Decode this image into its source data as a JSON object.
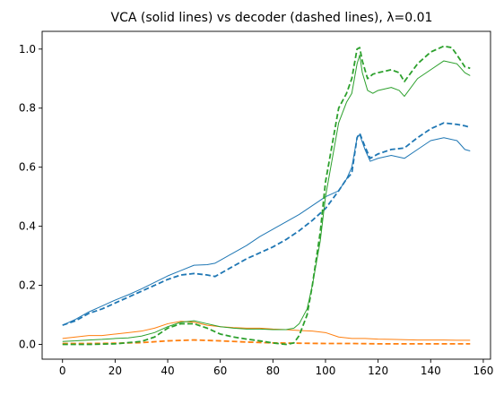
{
  "chart_data": {
    "type": "line",
    "title": "VCA (solid lines) vs decoder (dashed lines), λ=0.01",
    "xlabel": "",
    "ylabel": "",
    "xlim": [
      -7.75,
      162.75
    ],
    "ylim": [
      -0.05,
      1.06
    ],
    "xticks": [
      0,
      20,
      40,
      60,
      80,
      100,
      120,
      140,
      160
    ],
    "yticks": [
      0.0,
      0.2,
      0.4,
      0.6,
      0.8,
      1.0
    ],
    "ytick_labels": [
      "0.0",
      "0.2",
      "0.4",
      "0.6",
      "0.8",
      "1.0"
    ],
    "grid": false,
    "legend": "none",
    "colors": {
      "blue": "#1f77b4",
      "orange": "#ff7f0e",
      "green": "#2ca02c"
    },
    "series": [
      {
        "color": "#1f77b4",
        "style": "solid",
        "points": [
          [
            0,
            0.065
          ],
          [
            5,
            0.085
          ],
          [
            10,
            0.11
          ],
          [
            15,
            0.13
          ],
          [
            20,
            0.15
          ],
          [
            25,
            0.168
          ],
          [
            30,
            0.188
          ],
          [
            35,
            0.21
          ],
          [
            40,
            0.232
          ],
          [
            45,
            0.25
          ],
          [
            50,
            0.268
          ],
          [
            55,
            0.27
          ],
          [
            58,
            0.275
          ],
          [
            60,
            0.285
          ],
          [
            65,
            0.31
          ],
          [
            70,
            0.335
          ],
          [
            75,
            0.365
          ],
          [
            80,
            0.39
          ],
          [
            85,
            0.415
          ],
          [
            90,
            0.44
          ],
          [
            95,
            0.47
          ],
          [
            100,
            0.5
          ],
          [
            105,
            0.52
          ],
          [
            108,
            0.56
          ],
          [
            110,
            0.6
          ],
          [
            112,
            0.7
          ],
          [
            113,
            0.71
          ],
          [
            115,
            0.66
          ],
          [
            117,
            0.62
          ],
          [
            120,
            0.63
          ],
          [
            125,
            0.64
          ],
          [
            130,
            0.63
          ],
          [
            135,
            0.66
          ],
          [
            140,
            0.69
          ],
          [
            145,
            0.7
          ],
          [
            150,
            0.69
          ],
          [
            153,
            0.66
          ],
          [
            155,
            0.655
          ]
        ]
      },
      {
        "color": "#1f77b4",
        "style": "dashed",
        "points": [
          [
            0,
            0.065
          ],
          [
            5,
            0.08
          ],
          [
            10,
            0.105
          ],
          [
            15,
            0.12
          ],
          [
            20,
            0.14
          ],
          [
            25,
            0.16
          ],
          [
            30,
            0.18
          ],
          [
            35,
            0.2
          ],
          [
            40,
            0.22
          ],
          [
            45,
            0.235
          ],
          [
            50,
            0.24
          ],
          [
            55,
            0.235
          ],
          [
            58,
            0.23
          ],
          [
            60,
            0.24
          ],
          [
            65,
            0.265
          ],
          [
            70,
            0.29
          ],
          [
            75,
            0.31
          ],
          [
            80,
            0.33
          ],
          [
            85,
            0.355
          ],
          [
            90,
            0.385
          ],
          [
            95,
            0.42
          ],
          [
            100,
            0.46
          ],
          [
            105,
            0.52
          ],
          [
            108,
            0.56
          ],
          [
            110,
            0.58
          ],
          [
            112,
            0.7
          ],
          [
            113,
            0.715
          ],
          [
            115,
            0.67
          ],
          [
            117,
            0.63
          ],
          [
            120,
            0.645
          ],
          [
            125,
            0.66
          ],
          [
            130,
            0.665
          ],
          [
            135,
            0.7
          ],
          [
            140,
            0.73
          ],
          [
            145,
            0.75
          ],
          [
            150,
            0.745
          ],
          [
            153,
            0.74
          ],
          [
            155,
            0.735
          ]
        ]
      },
      {
        "color": "#ff7f0e",
        "style": "solid",
        "points": [
          [
            0,
            0.02
          ],
          [
            5,
            0.025
          ],
          [
            10,
            0.03
          ],
          [
            15,
            0.03
          ],
          [
            20,
            0.035
          ],
          [
            25,
            0.04
          ],
          [
            30,
            0.045
          ],
          [
            35,
            0.055
          ],
          [
            40,
            0.07
          ],
          [
            45,
            0.078
          ],
          [
            50,
            0.075
          ],
          [
            55,
            0.065
          ],
          [
            60,
            0.06
          ],
          [
            65,
            0.057
          ],
          [
            70,
            0.055
          ],
          [
            75,
            0.055
          ],
          [
            80,
            0.052
          ],
          [
            85,
            0.05
          ],
          [
            90,
            0.047
          ],
          [
            95,
            0.045
          ],
          [
            100,
            0.04
          ],
          [
            105,
            0.025
          ],
          [
            110,
            0.02
          ],
          [
            115,
            0.02
          ],
          [
            120,
            0.018
          ],
          [
            125,
            0.017
          ],
          [
            130,
            0.016
          ],
          [
            135,
            0.015
          ],
          [
            140,
            0.015
          ],
          [
            145,
            0.015
          ],
          [
            150,
            0.014
          ],
          [
            155,
            0.014
          ]
        ]
      },
      {
        "color": "#ff7f0e",
        "style": "dashed",
        "points": [
          [
            0,
            0.003
          ],
          [
            10,
            0.003
          ],
          [
            20,
            0.004
          ],
          [
            30,
            0.006
          ],
          [
            40,
            0.012
          ],
          [
            50,
            0.015
          ],
          [
            60,
            0.012
          ],
          [
            70,
            0.008
          ],
          [
            80,
            0.005
          ],
          [
            90,
            0.004
          ],
          [
            100,
            0.003
          ],
          [
            110,
            0.003
          ],
          [
            120,
            0.002
          ],
          [
            130,
            0.002
          ],
          [
            140,
            0.002
          ],
          [
            150,
            0.002
          ],
          [
            155,
            0.002
          ]
        ]
      },
      {
        "color": "#2ca02c",
        "style": "solid",
        "points": [
          [
            0,
            0.01
          ],
          [
            5,
            0.012
          ],
          [
            10,
            0.015
          ],
          [
            15,
            0.017
          ],
          [
            20,
            0.02
          ],
          [
            25,
            0.022
          ],
          [
            30,
            0.028
          ],
          [
            35,
            0.04
          ],
          [
            40,
            0.06
          ],
          [
            45,
            0.075
          ],
          [
            50,
            0.08
          ],
          [
            55,
            0.07
          ],
          [
            60,
            0.06
          ],
          [
            65,
            0.055
          ],
          [
            70,
            0.052
          ],
          [
            75,
            0.052
          ],
          [
            80,
            0.05
          ],
          [
            85,
            0.05
          ],
          [
            88,
            0.055
          ],
          [
            90,
            0.07
          ],
          [
            93,
            0.12
          ],
          [
            95,
            0.2
          ],
          [
            98,
            0.35
          ],
          [
            100,
            0.5
          ],
          [
            103,
            0.65
          ],
          [
            105,
            0.75
          ],
          [
            108,
            0.82
          ],
          [
            110,
            0.85
          ],
          [
            112,
            0.95
          ],
          [
            113,
            0.98
          ],
          [
            114,
            0.92
          ],
          [
            116,
            0.86
          ],
          [
            118,
            0.85
          ],
          [
            120,
            0.86
          ],
          [
            125,
            0.87
          ],
          [
            128,
            0.86
          ],
          [
            130,
            0.84
          ],
          [
            135,
            0.9
          ],
          [
            140,
            0.93
          ],
          [
            145,
            0.96
          ],
          [
            150,
            0.95
          ],
          [
            153,
            0.92
          ],
          [
            155,
            0.91
          ]
        ]
      },
      {
        "color": "#2ca02c",
        "style": "dashed",
        "points": [
          [
            0,
            0.0
          ],
          [
            10,
            0.0
          ],
          [
            20,
            0.002
          ],
          [
            30,
            0.01
          ],
          [
            35,
            0.025
          ],
          [
            40,
            0.055
          ],
          [
            45,
            0.07
          ],
          [
            50,
            0.07
          ],
          [
            55,
            0.055
          ],
          [
            60,
            0.035
          ],
          [
            65,
            0.025
          ],
          [
            70,
            0.018
          ],
          [
            75,
            0.012
          ],
          [
            80,
            0.005
          ],
          [
            85,
            0.0
          ],
          [
            88,
            0.005
          ],
          [
            90,
            0.03
          ],
          [
            93,
            0.1
          ],
          [
            95,
            0.2
          ],
          [
            98,
            0.38
          ],
          [
            100,
            0.55
          ],
          [
            103,
            0.7
          ],
          [
            105,
            0.8
          ],
          [
            108,
            0.85
          ],
          [
            110,
            0.9
          ],
          [
            112,
            1.0
          ],
          [
            113,
            1.005
          ],
          [
            114,
            0.96
          ],
          [
            116,
            0.9
          ],
          [
            118,
            0.915
          ],
          [
            120,
            0.92
          ],
          [
            125,
            0.93
          ],
          [
            128,
            0.92
          ],
          [
            130,
            0.89
          ],
          [
            135,
            0.95
          ],
          [
            140,
            0.99
          ],
          [
            145,
            1.01
          ],
          [
            148,
            1.005
          ],
          [
            150,
            0.98
          ],
          [
            153,
            0.94
          ],
          [
            155,
            0.935
          ]
        ]
      }
    ]
  }
}
